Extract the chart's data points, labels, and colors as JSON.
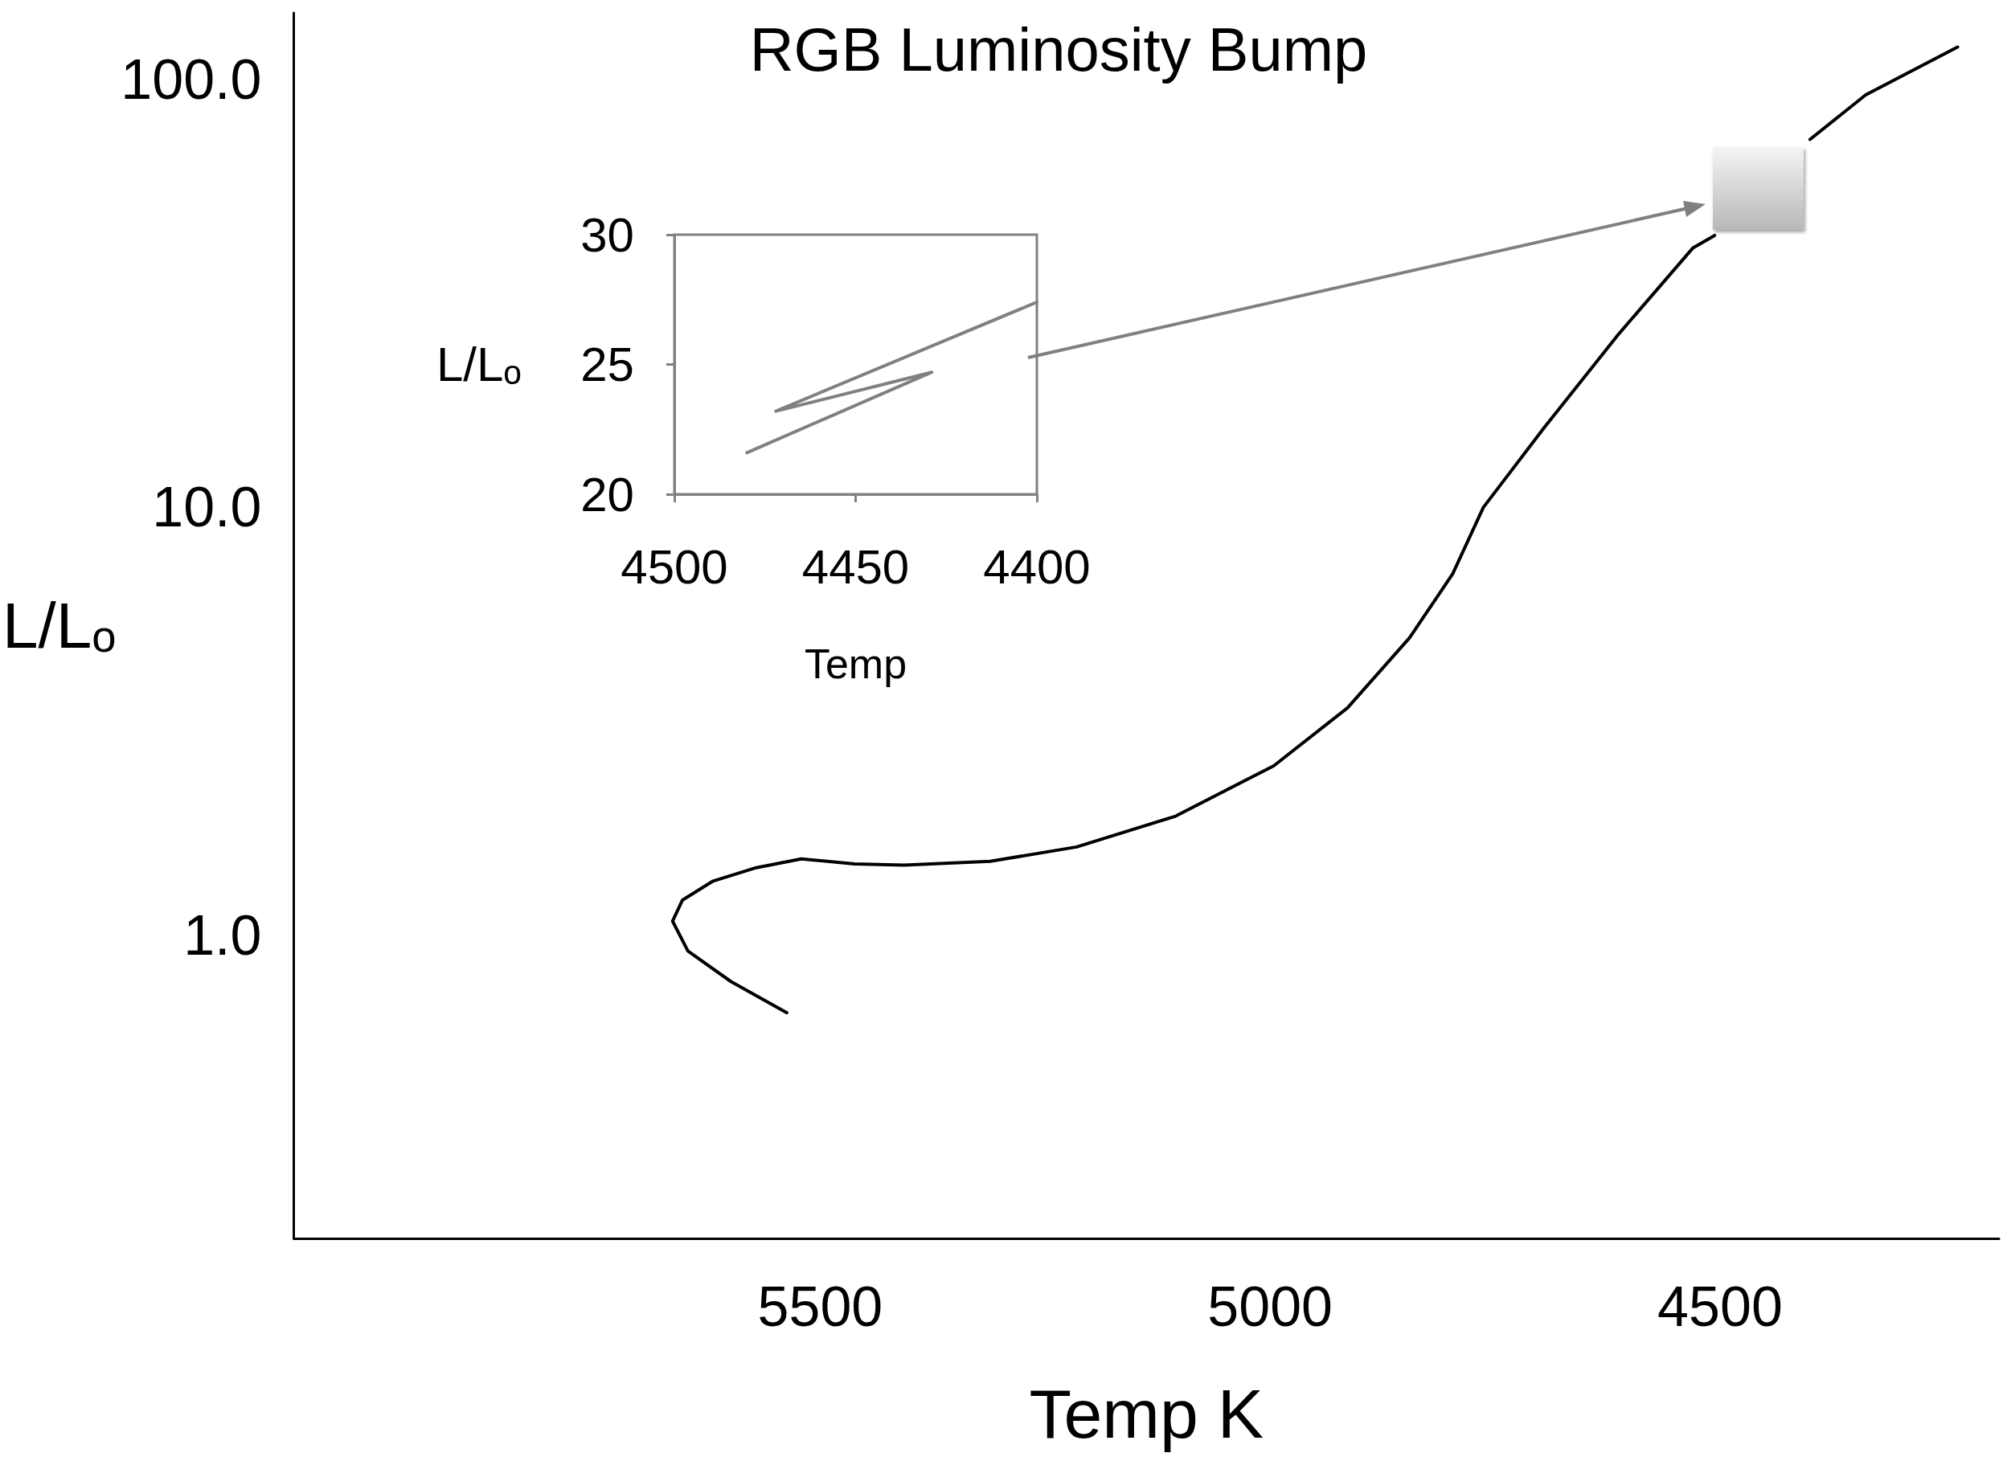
{
  "chart_data": [
    {
      "type": "line",
      "title": "RGB Luminosity Bump",
      "xlabel": "Temp K",
      "ylabel": "L/Lₒ",
      "log": "y",
      "color": "#000000",
      "x": [
        5537,
        5599,
        5647,
        5664,
        5653,
        5619,
        5571,
        5521,
        5462,
        5407,
        5311,
        5215,
        5105,
        4996,
        4914,
        4845,
        4797,
        4763,
        4695,
        4612,
        4530,
        4506,
        4496,
        4421,
        4400,
        4338,
        4236
      ],
      "values": [
        0.66,
        0.78,
        0.92,
        1.08,
        1.21,
        1.34,
        1.44,
        1.51,
        1.47,
        1.46,
        1.49,
        1.61,
        1.9,
        2.49,
        3.4,
        4.96,
        7.0,
        10.0,
        15.4,
        25.5,
        40.4,
        43.2,
        null,
        null,
        72.4,
        92,
        119
      ],
      "xlim": [
        6085,
        4190
      ],
      "xticks": [
        5500,
        5000,
        4500
      ],
      "ylim": [
        0.196,
        143
      ],
      "yticks": [
        {
          "value": 1,
          "label": "1.0"
        },
        {
          "value": 10,
          "label": "10.0"
        },
        {
          "value": 100,
          "label": "100.0"
        }
      ]
    },
    {
      "type": "line",
      "xlabel": "Temp",
      "ylabel": "L/Lₒ",
      "color": "#808084",
      "x": [
        4480,
        4429,
        4472,
        4400
      ],
      "values": [
        21.6,
        24.7,
        23.2,
        27.4
      ],
      "xlim": [
        4500,
        4400
      ],
      "xticks": [
        4500,
        4450,
        4400
      ],
      "ylim": [
        20,
        30
      ],
      "yticks": [
        20,
        25,
        30
      ]
    }
  ]
}
